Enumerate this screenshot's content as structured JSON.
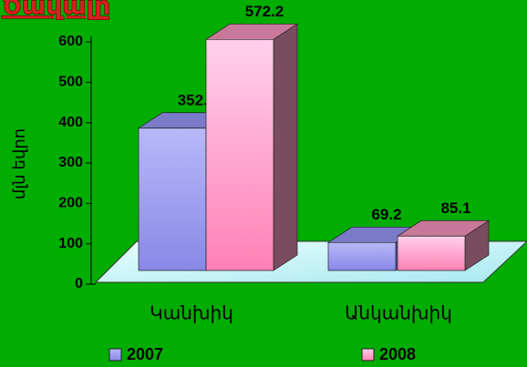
{
  "chart_data": {
    "type": "bar3d",
    "title": "Ծավալը",
    "y_label": "մլն եվրո",
    "categories": [
      "Կանխիկ",
      "Անկանխիկ"
    ],
    "series": [
      {
        "name": "2007",
        "color": "#9c9cf0",
        "values": [
          352.4,
          69.2
        ]
      },
      {
        "name": "2008",
        "color": "#ff9cc8",
        "values": [
          572.2,
          85.1
        ]
      }
    ],
    "ylim": [
      0,
      600
    ],
    "yticks": [
      0,
      100,
      200,
      300,
      400,
      500,
      600
    ]
  }
}
